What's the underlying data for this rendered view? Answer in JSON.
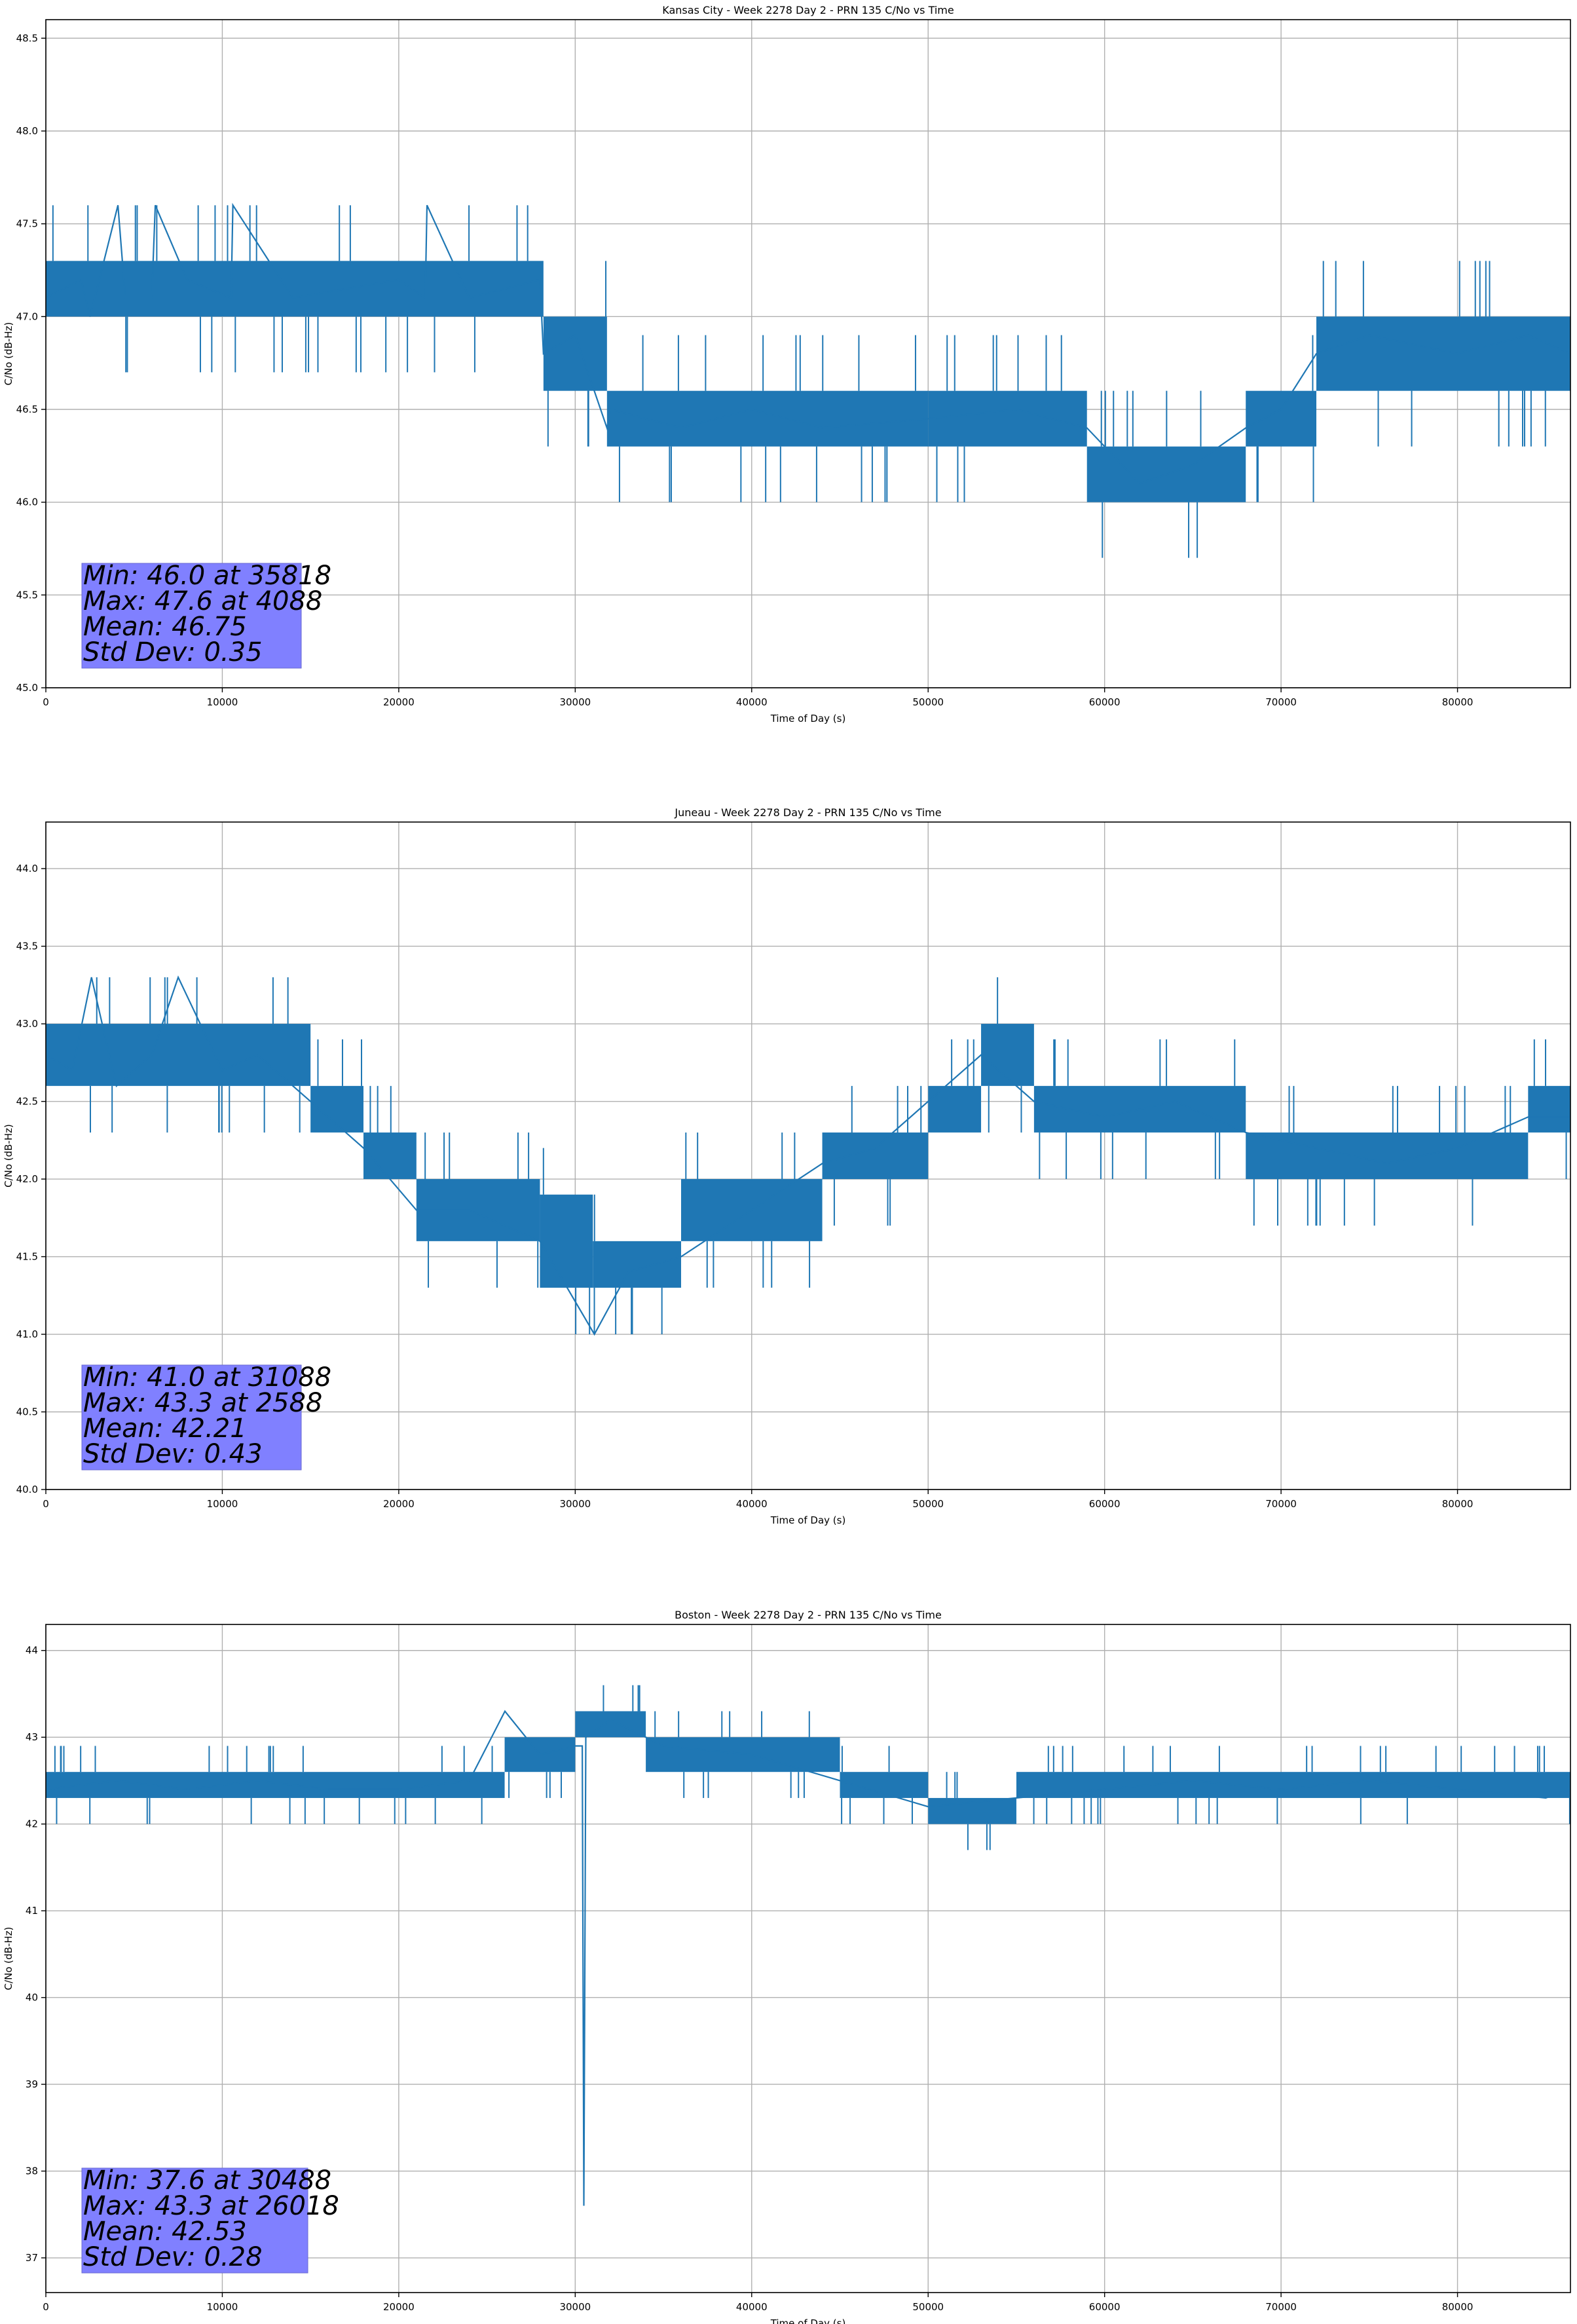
{
  "chart_data": [
    {
      "type": "line",
      "title": "Kansas City - Week 2278 Day 2 - PRN 135 C/No vs Time",
      "xlabel": "Time of Day (s)",
      "ylabel": "C/No (dB-Hz)",
      "xlim": [
        0,
        86400
      ],
      "ylim": [
        45.0,
        48.6
      ],
      "xticks": [
        0,
        10000,
        20000,
        30000,
        40000,
        50000,
        60000,
        70000,
        80000
      ],
      "yticks": [
        45.0,
        45.5,
        46.0,
        46.5,
        47.0,
        47.5,
        48.0,
        48.5
      ],
      "ytick_decimals": 1,
      "grid": true,
      "line_color": "#1f77b4",
      "segments": [
        {
          "x0": 0,
          "x1": 28200,
          "lo": 47.0,
          "hi": 47.3
        },
        {
          "x0": 28200,
          "x1": 31800,
          "lo": 46.6,
          "hi": 47.0
        },
        {
          "x0": 31800,
          "x1": 50000,
          "lo": 46.3,
          "hi": 46.6
        },
        {
          "x0": 50000,
          "x1": 59000,
          "lo": 46.3,
          "hi": 46.6
        },
        {
          "x0": 59000,
          "x1": 68000,
          "lo": 46.0,
          "hi": 46.3
        },
        {
          "x0": 68000,
          "x1": 72000,
          "lo": 46.3,
          "hi": 46.6
        },
        {
          "x0": 72000,
          "x1": 86400,
          "lo": 46.6,
          "hi": 47.0
        }
      ],
      "series": [
        {
          "x": [
            0,
            2000,
            2500,
            4088,
            4500,
            6000,
            6200,
            8000,
            10500,
            10600,
            14000,
            20000,
            21500,
            21600,
            24000,
            28000,
            28200,
            30000,
            31800,
            32000,
            36000,
            40000,
            44000,
            50000,
            55000,
            59000,
            62000,
            65000,
            68000,
            70000,
            72000,
            75000,
            80000,
            84000,
            86400
          ],
          "y": [
            47.1,
            47.2,
            47.0,
            47.6,
            47.1,
            47.1,
            47.6,
            47.2,
            47.1,
            47.6,
            47.1,
            47.2,
            47.1,
            47.6,
            47.1,
            47.2,
            46.8,
            46.9,
            46.4,
            46.5,
            46.4,
            46.5,
            46.4,
            46.45,
            46.5,
            46.4,
            46.1,
            46.2,
            46.4,
            46.5,
            46.8,
            46.9,
            46.8,
            46.9,
            46.8
          ]
        }
      ],
      "stats": {
        "min": "Min: 46.0 at 35818",
        "max": "Max: 47.6 at 4088",
        "mean": "Mean: 46.75",
        "std": "Std Dev: 0.35"
      }
    },
    {
      "type": "line",
      "title": "Juneau - Week 2278 Day 2 - PRN 135 C/No vs Time",
      "xlabel": "Time of Day (s)",
      "ylabel": "C/No (dB-Hz)",
      "xlim": [
        0,
        86400
      ],
      "ylim": [
        40.0,
        44.3
      ],
      "xticks": [
        0,
        10000,
        20000,
        30000,
        40000,
        50000,
        60000,
        70000,
        80000
      ],
      "yticks": [
        40.0,
        40.5,
        41.0,
        41.5,
        42.0,
        42.5,
        43.0,
        43.5,
        44.0
      ],
      "ytick_decimals": 1,
      "grid": true,
      "line_color": "#1f77b4",
      "segments": [
        {
          "x0": 0,
          "x1": 15000,
          "lo": 42.6,
          "hi": 43.0
        },
        {
          "x0": 15000,
          "x1": 18000,
          "lo": 42.3,
          "hi": 42.6
        },
        {
          "x0": 18000,
          "x1": 21000,
          "lo": 42.0,
          "hi": 42.3
        },
        {
          "x0": 21000,
          "x1": 28000,
          "lo": 41.6,
          "hi": 42.0
        },
        {
          "x0": 28000,
          "x1": 31000,
          "lo": 41.3,
          "hi": 41.9
        },
        {
          "x0": 31000,
          "x1": 36000,
          "lo": 41.3,
          "hi": 41.6
        },
        {
          "x0": 36000,
          "x1": 44000,
          "lo": 41.6,
          "hi": 42.0
        },
        {
          "x0": 44000,
          "x1": 50000,
          "lo": 42.0,
          "hi": 42.3
        },
        {
          "x0": 50000,
          "x1": 53000,
          "lo": 42.3,
          "hi": 42.6
        },
        {
          "x0": 53000,
          "x1": 56000,
          "lo": 42.6,
          "hi": 43.0
        },
        {
          "x0": 56000,
          "x1": 68000,
          "lo": 42.3,
          "hi": 42.6
        },
        {
          "x0": 68000,
          "x1": 84000,
          "lo": 42.0,
          "hi": 42.3
        },
        {
          "x0": 84000,
          "x1": 86400,
          "lo": 42.3,
          "hi": 42.6
        }
      ],
      "series": [
        {
          "x": [
            0,
            1500,
            2588,
            4000,
            6000,
            7500,
            10000,
            12000,
            15000,
            18000,
            21000,
            24000,
            28000,
            31088,
            33000,
            36000,
            40000,
            44000,
            47000,
            50000,
            53000,
            56000,
            60000,
            64000,
            68000,
            72000,
            76000,
            80000,
            84000,
            86400
          ],
          "y": [
            42.8,
            42.7,
            43.3,
            42.6,
            42.8,
            43.3,
            42.7,
            42.8,
            42.5,
            42.2,
            41.8,
            41.8,
            41.6,
            41.0,
            41.4,
            41.5,
            41.8,
            42.1,
            42.2,
            42.5,
            42.8,
            42.5,
            42.4,
            42.5,
            42.3,
            42.2,
            42.1,
            42.2,
            42.4,
            42.4
          ]
        }
      ],
      "stats": {
        "min": "Min: 41.0 at 31088",
        "max": "Max: 43.3 at 2588",
        "mean": "Mean: 42.21",
        "std": "Std Dev: 0.43"
      }
    },
    {
      "type": "line",
      "title": "Boston - Week 2278 Day 2 - PRN 135 C/No vs Time",
      "xlabel": "Time of Day (s)",
      "ylabel": "C/No (dB-Hz)",
      "xlim": [
        0,
        86400
      ],
      "ylim": [
        36.6,
        44.3
      ],
      "xticks": [
        0,
        10000,
        20000,
        30000,
        40000,
        50000,
        60000,
        70000,
        80000
      ],
      "yticks": [
        37,
        38,
        39,
        40,
        41,
        42,
        43,
        44
      ],
      "ytick_decimals": 0,
      "grid": true,
      "line_color": "#1f77b4",
      "segments": [
        {
          "x0": 0,
          "x1": 26000,
          "lo": 42.3,
          "hi": 42.6
        },
        {
          "x0": 26000,
          "x1": 30000,
          "lo": 42.6,
          "hi": 43.0
        },
        {
          "x0": 30000,
          "x1": 34000,
          "lo": 43.0,
          "hi": 43.3
        },
        {
          "x0": 34000,
          "x1": 45000,
          "lo": 42.6,
          "hi": 43.0
        },
        {
          "x0": 45000,
          "x1": 50000,
          "lo": 42.3,
          "hi": 42.6
        },
        {
          "x0": 50000,
          "x1": 55000,
          "lo": 42.0,
          "hi": 42.3
        },
        {
          "x0": 55000,
          "x1": 86400,
          "lo": 42.3,
          "hi": 42.6
        }
      ],
      "series": [
        {
          "x": [
            0,
            4000,
            8000,
            12000,
            16000,
            20000,
            24000,
            26018,
            28000,
            30000,
            30400,
            30488,
            30600,
            32000,
            35000,
            40000,
            45000,
            50000,
            55000,
            60000,
            65000,
            70000,
            75000,
            80000,
            85000,
            86400
          ],
          "y": [
            42.4,
            42.5,
            42.4,
            42.5,
            42.4,
            42.4,
            42.5,
            43.3,
            42.8,
            42.9,
            42.9,
            37.6,
            43.0,
            43.2,
            42.9,
            42.8,
            42.5,
            42.2,
            42.3,
            42.4,
            42.5,
            42.4,
            42.5,
            42.4,
            42.3,
            42.4
          ]
        }
      ],
      "stats": {
        "min": "Min: 37.6 at 30488",
        "max": "Max: 43.3 at 26018",
        "mean": "Mean: 42.53",
        "std": "Std Dev: 0.28"
      }
    }
  ]
}
